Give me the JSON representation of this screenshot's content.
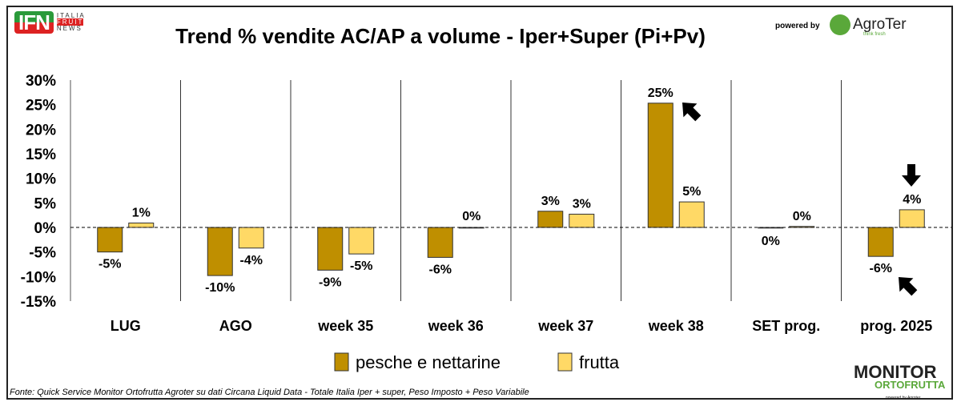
{
  "header": {
    "logo_left": "IFN ITALIA FRUIT NEWS",
    "logo_left_mark": "IFN",
    "logo_left_sub": [
      "ITALIA",
      "FRUIT",
      "NEWS"
    ],
    "powered_by": "powered by",
    "logo_right": "AgroTer",
    "logo_right_tagline": "think fresh"
  },
  "footer": {
    "source": "Fonte: Quick Service Monitor Ortofrutta Agroter su dati Circana Liquid Data - Totale Italia Iper + super, Peso Imposto + Peso Variabile",
    "logo": "MONITOR ORTOFRUTTA powered by Agroter"
  },
  "chart_data": {
    "type": "bar",
    "title": "Trend % vendite AC/AP a volume -  Iper+Super (Pi+Pv)",
    "categories": [
      "LUG",
      "AGO",
      "week 35",
      "week 36",
      "week 37",
      "week 38",
      "SET prog.",
      "prog. 2025"
    ],
    "series": [
      {
        "name": "pesche e nettarine",
        "color": "#BF8F00",
        "values": [
          -5.0,
          -9.8,
          -8.7,
          -6.1,
          3.3,
          25.3,
          0.0,
          -5.9
        ],
        "labels": [
          "-5%",
          "-10%",
          "-9%",
          "-6%",
          "3%",
          "25%",
          "0%",
          "-6%"
        ]
      },
      {
        "name": "frutta",
        "color": "#FFD966",
        "values": [
          0.9,
          -4.2,
          -5.4,
          0.0,
          2.7,
          5.2,
          0.2,
          3.6
        ],
        "labels": [
          "1%",
          "-4%",
          "-5%",
          "0%",
          "3%",
          "5%",
          "0%",
          "4%"
        ]
      }
    ],
    "ylim": [
      -15,
      30
    ],
    "yticks": [
      "-15%",
      "-10%",
      "-5%",
      "0%",
      "5%",
      "10%",
      "15%",
      "20%",
      "25%",
      "30%"
    ],
    "ytick_values": [
      -15,
      -10,
      -5,
      0,
      5,
      10,
      15,
      20,
      25,
      30
    ],
    "legend": "bottom",
    "annotations": [
      "arrow pointing at week 38 pesche",
      "arrow pointing at prog. 2025 frutta",
      "arrow pointing at prog. 2025 pesche"
    ]
  }
}
